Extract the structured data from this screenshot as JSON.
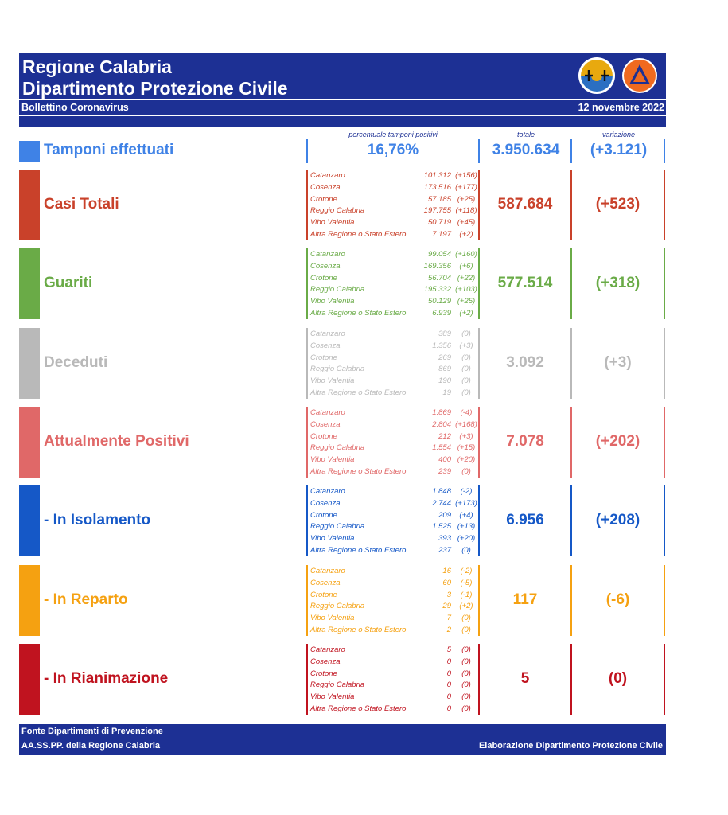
{
  "header": {
    "title_line1": "Regione Calabria",
    "title_line2": "Dipartimento Protezione Civile",
    "subtitle": "Bollettino Coronavirus",
    "date": "12 novembre 2022",
    "logo1": "regione-calabria-crest",
    "logo2": "protezione-civile-emblem"
  },
  "columns": {
    "pct_header": "percentuale tamponi positivi",
    "total_header": "totale",
    "variation_header": "variazione"
  },
  "tamponi": {
    "label": "Tamponi effettuati",
    "percent": "16,76%",
    "total": "3.950.634",
    "variation": "(+3.121)",
    "color": "#3f82e6"
  },
  "rows": [
    {
      "label": "Casi Totali",
      "color": "#c9412a",
      "total": "587.684",
      "variation": "(+523)",
      "items": [
        {
          "province": "Catanzaro",
          "value": "101.312",
          "delta": "(+156)"
        },
        {
          "province": "Cosenza",
          "value": "173.516",
          "delta": "(+177)"
        },
        {
          "province": "Crotone",
          "value": "57.185",
          "delta": "(+25)"
        },
        {
          "province": "Reggio Calabria",
          "value": "197.755",
          "delta": "(+118)"
        },
        {
          "province": "Vibo Valentia",
          "value": "50.719",
          "delta": "(+45)"
        },
        {
          "province": "Altra Regione o Stato Estero",
          "value": "7.197",
          "delta": "(+2)"
        }
      ]
    },
    {
      "label": "Guariti",
      "color": "#6aab47",
      "total": "577.514",
      "variation": "(+318)",
      "items": [
        {
          "province": "Catanzaro",
          "value": "99.054",
          "delta": "(+160)"
        },
        {
          "province": "Cosenza",
          "value": "169.356",
          "delta": "(+6)"
        },
        {
          "province": "Crotone",
          "value": "56.704",
          "delta": "(+22)"
        },
        {
          "province": "Reggio Calabria",
          "value": "195.332",
          "delta": "(+103)"
        },
        {
          "province": "Vibo Valentia",
          "value": "50.129",
          "delta": "(+25)"
        },
        {
          "province": "Altra Regione o Stato Estero",
          "value": "6.939",
          "delta": "(+2)"
        }
      ]
    },
    {
      "label": "Deceduti",
      "color": "#b9b9b9",
      "total": "3.092",
      "variation": "(+3)",
      "items": [
        {
          "province": "Catanzaro",
          "value": "389",
          "delta": "(0)"
        },
        {
          "province": "Cosenza",
          "value": "1.356",
          "delta": "(+3)"
        },
        {
          "province": "Crotone",
          "value": "269",
          "delta": "(0)"
        },
        {
          "province": "Reggio Calabria",
          "value": "869",
          "delta": "(0)"
        },
        {
          "province": "Vibo Valentia",
          "value": "190",
          "delta": "(0)"
        },
        {
          "province": "Altra Regione o Stato Estero",
          "value": "19",
          "delta": "(0)"
        }
      ]
    },
    {
      "label": "Attualmente Positivi",
      "color": "#e06868",
      "total": "7.078",
      "variation": "(+202)",
      "items": [
        {
          "province": "Catanzaro",
          "value": "1.869",
          "delta": "(-4)"
        },
        {
          "province": "Cosenza",
          "value": "2.804",
          "delta": "(+168)"
        },
        {
          "province": "Crotone",
          "value": "212",
          "delta": "(+3)"
        },
        {
          "province": "Reggio Calabria",
          "value": "1.554",
          "delta": "(+15)"
        },
        {
          "province": "Vibo Valentia",
          "value": "400",
          "delta": "(+20)"
        },
        {
          "province": "Altra Regione o Stato Estero",
          "value": "239",
          "delta": "(0)"
        }
      ]
    },
    {
      "label": "- In Isolamento",
      "color": "#1558c7",
      "total": "6.956",
      "variation": "(+208)",
      "items": [
        {
          "province": "Catanzaro",
          "value": "1.848",
          "delta": "(-2)"
        },
        {
          "province": "Cosenza",
          "value": "2.744",
          "delta": "(+173)"
        },
        {
          "province": "Crotone",
          "value": "209",
          "delta": "(+4)"
        },
        {
          "province": "Reggio Calabria",
          "value": "1.525",
          "delta": "(+13)"
        },
        {
          "province": "Vibo Valentia",
          "value": "393",
          "delta": "(+20)"
        },
        {
          "province": "Altra Regione o Stato Estero",
          "value": "237",
          "delta": "(0)"
        }
      ]
    },
    {
      "label": "- In Reparto",
      "color": "#f5a111",
      "total": "117",
      "variation": "(-6)",
      "items": [
        {
          "province": "Catanzaro",
          "value": "16",
          "delta": "(-2)"
        },
        {
          "province": "Cosenza",
          "value": "60",
          "delta": "(-5)"
        },
        {
          "province": "Crotone",
          "value": "3",
          "delta": "(-1)"
        },
        {
          "province": "Reggio Calabria",
          "value": "29",
          "delta": "(+2)"
        },
        {
          "province": "Vibo Valentia",
          "value": "7",
          "delta": "(0)"
        },
        {
          "province": "Altra Regione o Stato Estero",
          "value": "2",
          "delta": "(0)"
        }
      ]
    },
    {
      "label": "- In Rianimazione",
      "color": "#c0131f",
      "total": "5",
      "variation": "(0)",
      "items": [
        {
          "province": "Catanzaro",
          "value": "5",
          "delta": "(0)"
        },
        {
          "province": "Cosenza",
          "value": "0",
          "delta": "(0)"
        },
        {
          "province": "Crotone",
          "value": "0",
          "delta": "(0)"
        },
        {
          "province": "Reggio Calabria",
          "value": "0",
          "delta": "(0)"
        },
        {
          "province": "Vibo Valentia",
          "value": "0",
          "delta": "(0)"
        },
        {
          "province": "Altra Regione o Stato Estero",
          "value": "0",
          "delta": "(0)"
        }
      ]
    }
  ],
  "footer": {
    "source_line1": "Fonte Dipartimenti di Prevenzione",
    "source_line2": "AA.SS.PP.  della Regione Calabria",
    "elaboration": "Elaborazione Dipartimento Protezione Civile"
  }
}
